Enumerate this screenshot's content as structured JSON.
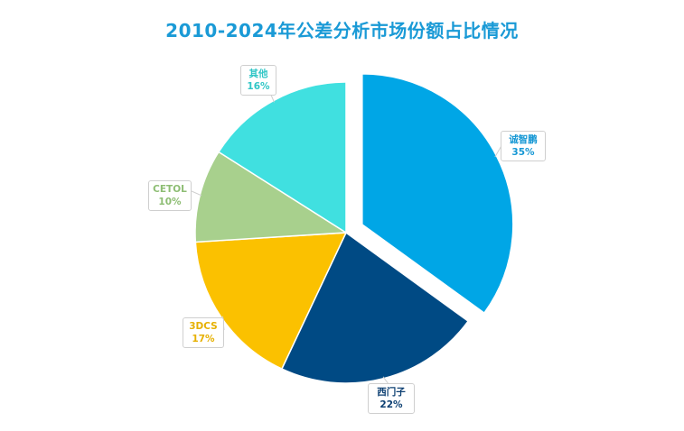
{
  "chart_data": {
    "type": "pie",
    "title": "2010-2024年公差分析市场份额占比情况",
    "slices": [
      {
        "name": "诚智鹏",
        "value": 35,
        "label": "35%",
        "color": "#00a6e6",
        "label_color": "#1597d4",
        "exploded": true
      },
      {
        "name": "西门子",
        "value": 22,
        "label": "22%",
        "color": "#004a84",
        "label_color": "#0c3f72",
        "exploded": false
      },
      {
        "name": "3DCS",
        "value": 17,
        "label": "17%",
        "color": "#fbc100",
        "label_color": "#e6b000",
        "exploded": false
      },
      {
        "name": "CETOL",
        "value": 10,
        "label": "10%",
        "color": "#a8d08d",
        "label_color": "#8dbd73",
        "exploded": false
      },
      {
        "name": "其他",
        "value": 16,
        "label": "16%",
        "color": "#40e0e0",
        "label_color": "#30c6c6",
        "exploded": false
      }
    ]
  }
}
